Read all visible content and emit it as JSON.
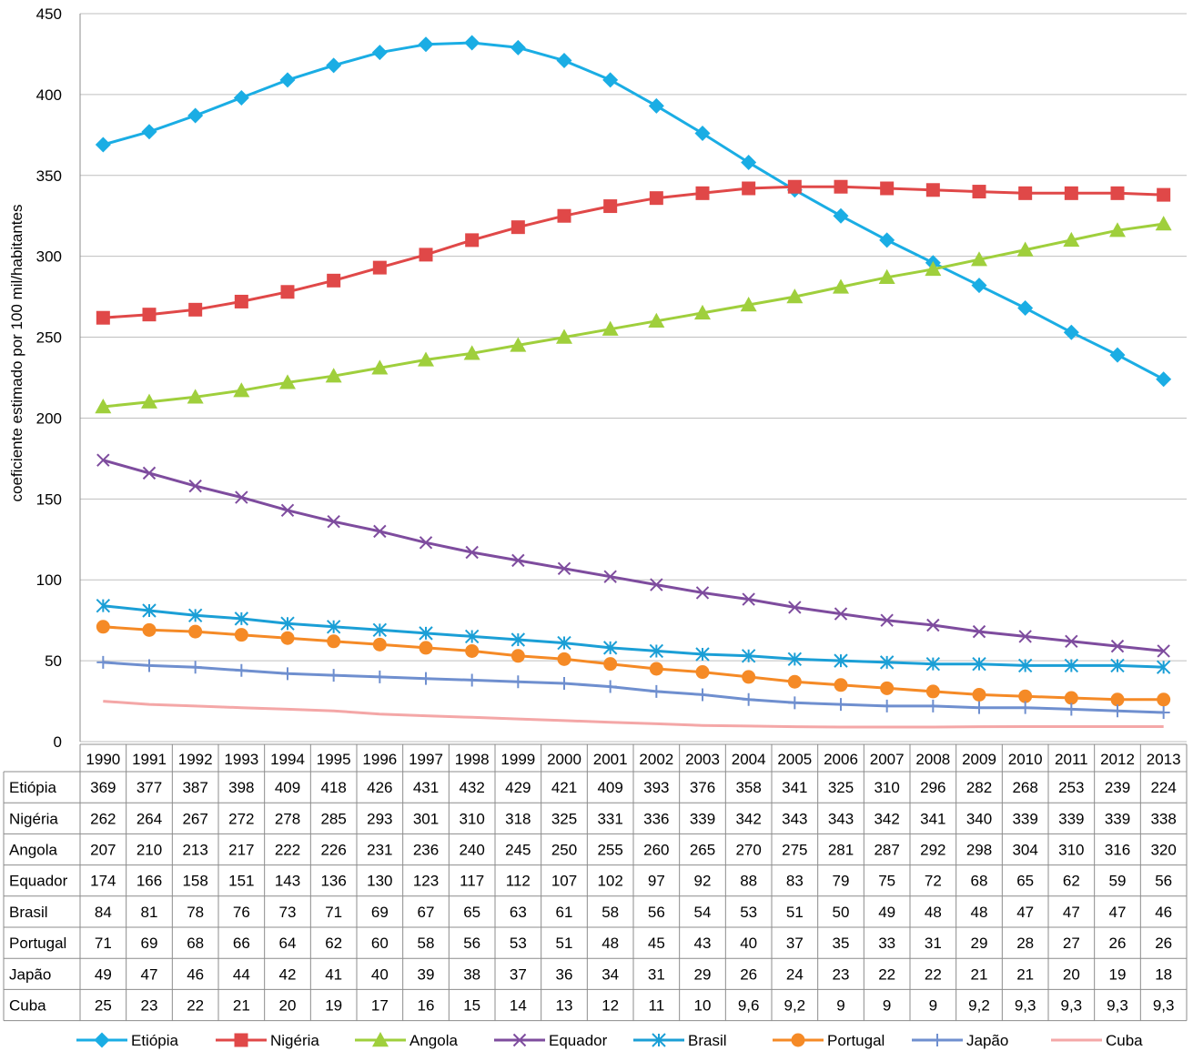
{
  "chart_data": {
    "type": "line",
    "title": "",
    "xlabel": "",
    "ylabel": "coeficiente estimado por 100 mil/habitantes",
    "ylim": [
      0,
      450
    ],
    "yticks": [
      0,
      50,
      100,
      150,
      200,
      250,
      300,
      350,
      400,
      450
    ],
    "grid": true,
    "legend": "bottom",
    "categories": [
      "1990",
      "1991",
      "1992",
      "1993",
      "1994",
      "1995",
      "1996",
      "1997",
      "1998",
      "1999",
      "2000",
      "2001",
      "2002",
      "2003",
      "2004",
      "2005",
      "2006",
      "2007",
      "2008",
      "2009",
      "2010",
      "2011",
      "2012",
      "2013"
    ],
    "series": [
      {
        "name": "Etiópia",
        "color": "#1aade4",
        "marker": "diamond",
        "values": [
          369,
          377,
          387,
          398,
          409,
          418,
          426,
          431,
          432,
          429,
          421,
          409,
          393,
          376,
          358,
          341,
          325,
          310,
          296,
          282,
          268,
          253,
          239,
          224
        ],
        "labels": [
          "369",
          "377",
          "387",
          "398",
          "409",
          "418",
          "426",
          "431",
          "432",
          "429",
          "421",
          "409",
          "393",
          "376",
          "358",
          "341",
          "325",
          "310",
          "296",
          "282",
          "268",
          "253",
          "239",
          "224"
        ]
      },
      {
        "name": "Nigéria",
        "color": "#e04848",
        "marker": "square",
        "values": [
          262,
          264,
          267,
          272,
          278,
          285,
          293,
          301,
          310,
          318,
          325,
          331,
          336,
          339,
          342,
          343,
          343,
          342,
          341,
          340,
          339,
          339,
          339,
          338
        ],
        "labels": [
          "262",
          "264",
          "267",
          "272",
          "278",
          "285",
          "293",
          "301",
          "310",
          "318",
          "325",
          "331",
          "336",
          "339",
          "342",
          "343",
          "343",
          "342",
          "341",
          "340",
          "339",
          "339",
          "339",
          "338"
        ]
      },
      {
        "name": "Angola",
        "color": "#9fcf3c",
        "marker": "triangle",
        "values": [
          207,
          210,
          213,
          217,
          222,
          226,
          231,
          236,
          240,
          245,
          250,
          255,
          260,
          265,
          270,
          275,
          281,
          287,
          292,
          298,
          304,
          310,
          316,
          320
        ],
        "labels": [
          "207",
          "210",
          "213",
          "217",
          "222",
          "226",
          "231",
          "236",
          "240",
          "245",
          "250",
          "255",
          "260",
          "265",
          "270",
          "275",
          "281",
          "287",
          "292",
          "298",
          "304",
          "310",
          "316",
          "320"
        ]
      },
      {
        "name": "Equador",
        "color": "#7e4c9e",
        "marker": "x",
        "values": [
          174,
          166,
          158,
          151,
          143,
          136,
          130,
          123,
          117,
          112,
          107,
          102,
          97,
          92,
          88,
          83,
          79,
          75,
          72,
          68,
          65,
          62,
          59,
          56
        ],
        "labels": [
          "174",
          "166",
          "158",
          "151",
          "143",
          "136",
          "130",
          "123",
          "117",
          "112",
          "107",
          "102",
          "97",
          "92",
          "88",
          "83",
          "79",
          "75",
          "72",
          "68",
          "65",
          "62",
          "59",
          "56"
        ]
      },
      {
        "name": "Brasil",
        "color": "#1b9fd6",
        "marker": "star",
        "values": [
          84,
          81,
          78,
          76,
          73,
          71,
          69,
          67,
          65,
          63,
          61,
          58,
          56,
          54,
          53,
          51,
          50,
          49,
          48,
          48,
          47,
          47,
          47,
          46
        ],
        "labels": [
          "84",
          "81",
          "78",
          "76",
          "73",
          "71",
          "69",
          "67",
          "65",
          "63",
          "61",
          "58",
          "56",
          "54",
          "53",
          "51",
          "50",
          "49",
          "48",
          "48",
          "47",
          "47",
          "47",
          "46"
        ]
      },
      {
        "name": "Portugal",
        "color": "#f58a26",
        "marker": "circle",
        "values": [
          71,
          69,
          68,
          66,
          64,
          62,
          60,
          58,
          56,
          53,
          51,
          48,
          45,
          43,
          40,
          37,
          35,
          33,
          31,
          29,
          28,
          27,
          26,
          26
        ],
        "labels": [
          "71",
          "69",
          "68",
          "66",
          "64",
          "62",
          "60",
          "58",
          "56",
          "53",
          "51",
          "48",
          "45",
          "43",
          "40",
          "37",
          "35",
          "33",
          "31",
          "29",
          "28",
          "27",
          "26",
          "26"
        ]
      },
      {
        "name": "Japão",
        "color": "#6f8fcf",
        "marker": "plus",
        "values": [
          49,
          47,
          46,
          44,
          42,
          41,
          40,
          39,
          38,
          37,
          36,
          34,
          31,
          29,
          26,
          24,
          23,
          22,
          22,
          21,
          21,
          20,
          19,
          18
        ],
        "labels": [
          "49",
          "47",
          "46",
          "44",
          "42",
          "41",
          "40",
          "39",
          "38",
          "37",
          "36",
          "34",
          "31",
          "29",
          "26",
          "24",
          "23",
          "22",
          "22",
          "21",
          "21",
          "20",
          "19",
          "18"
        ]
      },
      {
        "name": "Cuba",
        "color": "#f4a7a7",
        "marker": "none",
        "values": [
          25,
          23,
          22,
          21,
          20,
          19,
          17,
          16,
          15,
          14,
          13,
          12,
          11,
          10,
          9.6,
          9.2,
          9,
          9,
          9,
          9.2,
          9.3,
          9.3,
          9.3,
          9.3
        ],
        "labels": [
          "25",
          "23",
          "22",
          "21",
          "20",
          "19",
          "17",
          "16",
          "15",
          "14",
          "13",
          "12",
          "11",
          "10",
          "9,6",
          "9,2",
          "9",
          "9",
          "9",
          "9,2",
          "9,3",
          "9,3",
          "9,3",
          "9,3"
        ]
      }
    ]
  }
}
